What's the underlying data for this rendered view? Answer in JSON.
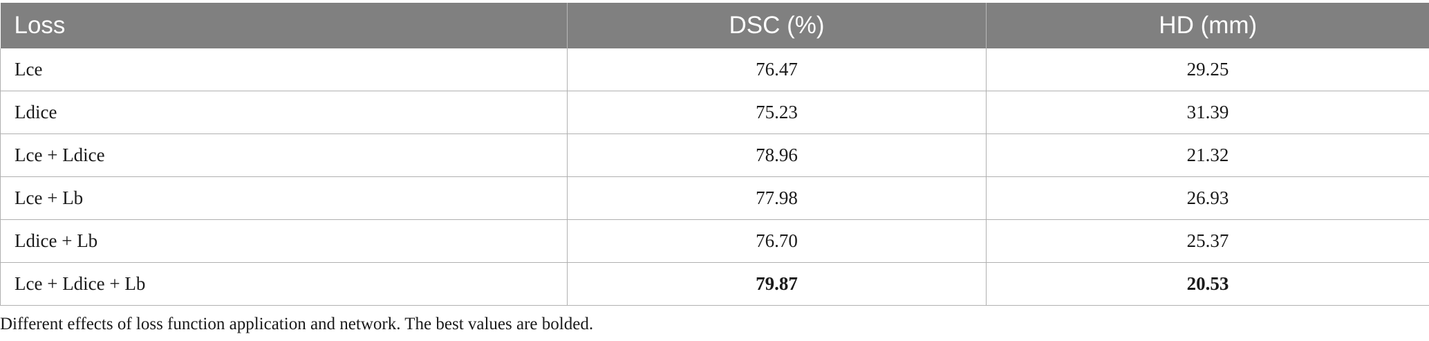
{
  "table": {
    "headers": [
      "Loss",
      "DSC (%)",
      "HD (mm)"
    ],
    "rows": [
      {
        "loss": "Lce",
        "dsc": "76.47",
        "hd": "29.25",
        "best": false
      },
      {
        "loss": "Ldice",
        "dsc": "75.23",
        "hd": "31.39",
        "best": false
      },
      {
        "loss": "Lce + Ldice",
        "dsc": "78.96",
        "hd": "21.32",
        "best": false
      },
      {
        "loss": "Lce + Lb",
        "dsc": "77.98",
        "hd": "26.93",
        "best": false
      },
      {
        "loss": "Ldice + Lb",
        "dsc": "76.70",
        "hd": "25.37",
        "best": false
      },
      {
        "loss": "Lce + Ldice + Lb",
        "dsc": "79.87",
        "hd": "20.53",
        "best": true
      }
    ]
  },
  "caption": "Different effects of loss function application and network. The best values are bolded.",
  "colors": {
    "header_bg": "#808080",
    "header_text": "#ffffff",
    "grid": "#b0b0b0"
  }
}
